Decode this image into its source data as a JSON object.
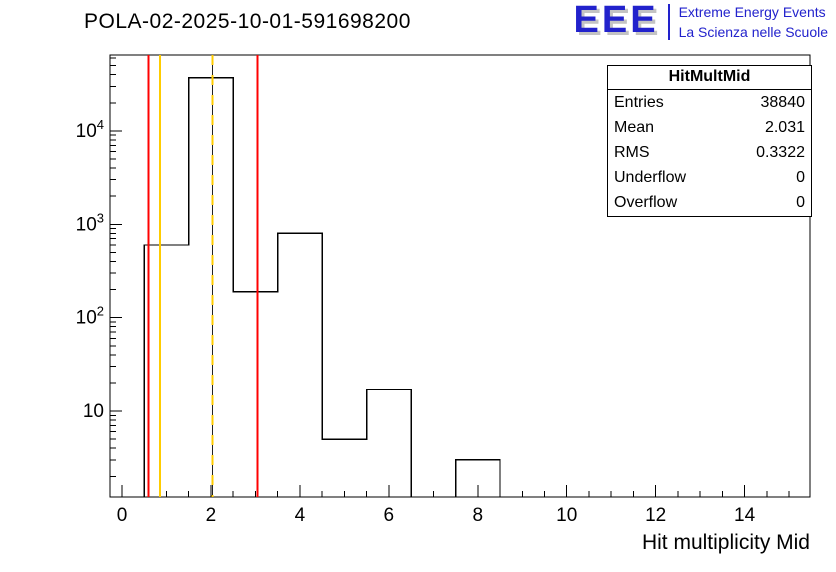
{
  "logo": {
    "text": "EEE",
    "line1": "Extreme Energy Events",
    "line2": "La Scienza nelle Scuole",
    "color": "#2222cc"
  },
  "stats": {
    "title": "HitMultMid",
    "rows": [
      {
        "label": "Entries",
        "value": "38840"
      },
      {
        "label": "Mean",
        "value": "2.031"
      },
      {
        "label": "RMS",
        "value": "0.3322"
      },
      {
        "label": "Underflow",
        "value": "0"
      },
      {
        "label": "Overflow",
        "value": "0"
      }
    ]
  },
  "chart_data": {
    "type": "bar",
    "style": "step-histogram-outline",
    "title": "POLA-02-2025-10-01-591698200",
    "xlabel": "Hit multiplicity Mid",
    "ylabel": "",
    "y_scale": "log",
    "x_range": [
      -0.27,
      15.47
    ],
    "y_range_log": [
      1.2,
      65000
    ],
    "x_ticks": [
      0,
      2,
      4,
      6,
      8,
      10,
      12,
      14
    ],
    "x_minor_step": 0.5,
    "y_ticks": [
      {
        "value": 10,
        "base": "10",
        "exp": ""
      },
      {
        "value": 100,
        "base": "10",
        "exp": "2"
      },
      {
        "value": 1000,
        "base": "10",
        "exp": "3"
      },
      {
        "value": 10000,
        "base": "10",
        "exp": "4"
      }
    ],
    "bin_width": 1,
    "bin_centers": [
      1,
      2,
      3,
      4,
      5,
      6,
      7,
      8
    ],
    "values": [
      600,
      37225,
      190,
      800,
      5,
      17,
      0,
      3
    ],
    "entries": 38840,
    "mean": 2.031,
    "rms": 0.3322,
    "underflow": 0,
    "overflow": 0,
    "line_color": "#000000",
    "vlines": [
      {
        "x": 0.6,
        "color": "#ff0000",
        "style": "solid",
        "name": "red-lower-limit-line"
      },
      {
        "x": 0.85,
        "color": "#ffcc00",
        "style": "solid",
        "name": "yellow-lower-warning-line"
      },
      {
        "x": 2.031,
        "color": "#ffcc00",
        "style": "dashed",
        "name": "mean-dashed-line"
      },
      {
        "x": 3.05,
        "color": "#ff0000",
        "style": "solid",
        "name": "red-upper-limit-line"
      }
    ],
    "grid": false,
    "legend": "none"
  }
}
